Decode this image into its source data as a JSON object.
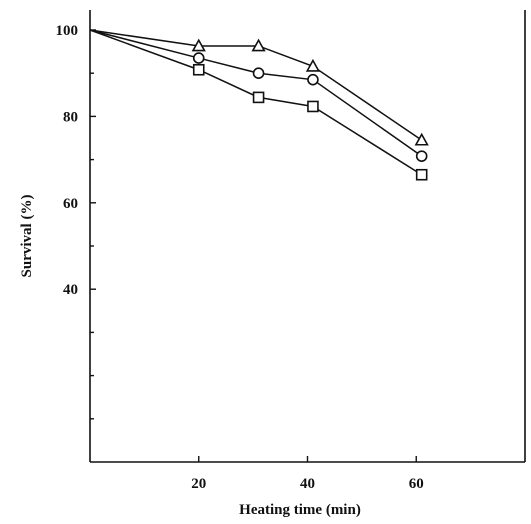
{
  "chart_data": {
    "type": "line",
    "title": "",
    "xlabel": "Heating time (min)",
    "ylabel": "Survival (%)",
    "xlim": [
      0,
      80
    ],
    "ylim": [
      0,
      100
    ],
    "x_ticks": [
      20,
      40,
      60
    ],
    "y_ticks": [
      40,
      60,
      80,
      100
    ],
    "y_minor_ticks": [
      10,
      20,
      30,
      50,
      70,
      90
    ],
    "grid": false,
    "series": [
      {
        "marker": "triangle",
        "x": [
          0,
          20,
          31,
          41,
          61
        ],
        "y": [
          100,
          96.3,
          96.3,
          91.6,
          74.5
        ]
      },
      {
        "marker": "circle",
        "x": [
          0,
          20,
          31,
          41,
          61
        ],
        "y": [
          100,
          93.5,
          90.0,
          88.5,
          70.8
        ]
      },
      {
        "marker": "square",
        "x": [
          0,
          20,
          31,
          41,
          61
        ],
        "y": [
          100,
          90.8,
          84.4,
          82.3,
          66.5
        ]
      }
    ]
  }
}
